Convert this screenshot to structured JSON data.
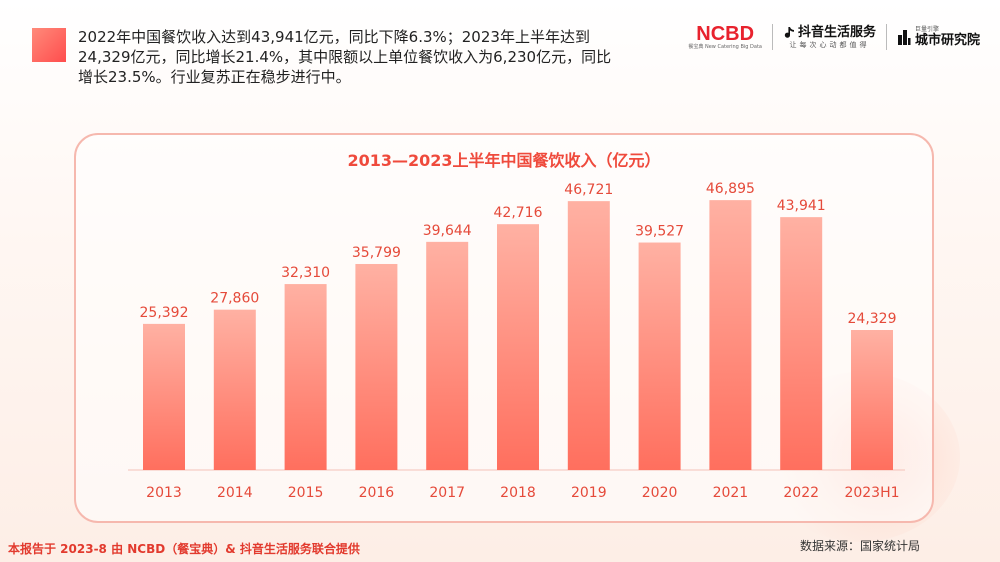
{
  "headline": {
    "line1": "2022年中国餐饮收入达到43,941亿元，同比下降6.3%；2023年上半年达到",
    "line2": "24,329亿元，同比增长21.4%，其中限额以上单位餐饮收入为6,230亿元，同比",
    "line3": "增长23.5%。行业复苏正在稳步进行中。"
  },
  "logos": {
    "ncbd_main": "NCBD",
    "ncbd_sub": "餐宝典  New Catering Big Data",
    "douyin_main": "抖音生活服务",
    "douyin_sub": "让每次心动都值得",
    "city_tiny": "巨量引擎",
    "city_name": "城市研究院"
  },
  "footer": {
    "left": "本报告于 2023-8 由 NCBD（餐宝典）& 抖音生活服务联合提供",
    "right": "数据来源：国家统计局"
  },
  "colors": {
    "accent": "#ef4a3c",
    "bar_top": "#ffb1a3",
    "bar_bottom": "#ff6f5e"
  },
  "chart_data": {
    "type": "bar",
    "title": "2013—2023上半年中国餐饮收入（亿元）",
    "categories": [
      "2013",
      "2014",
      "2015",
      "2016",
      "2017",
      "2018",
      "2019",
      "2020",
      "2021",
      "2022",
      "2023H1"
    ],
    "values": [
      25392,
      27860,
      32310,
      35799,
      39644,
      42716,
      46721,
      39527,
      46895,
      43941,
      24329
    ],
    "value_labels": [
      "25,392",
      "27,860",
      "32,310",
      "35,799",
      "39,644",
      "42,716",
      "46,721",
      "39,527",
      "46,895",
      "43,941",
      "24,329"
    ],
    "xlabel": "",
    "ylabel": "亿元",
    "ylim": [
      0,
      53000
    ],
    "grid": false
  }
}
